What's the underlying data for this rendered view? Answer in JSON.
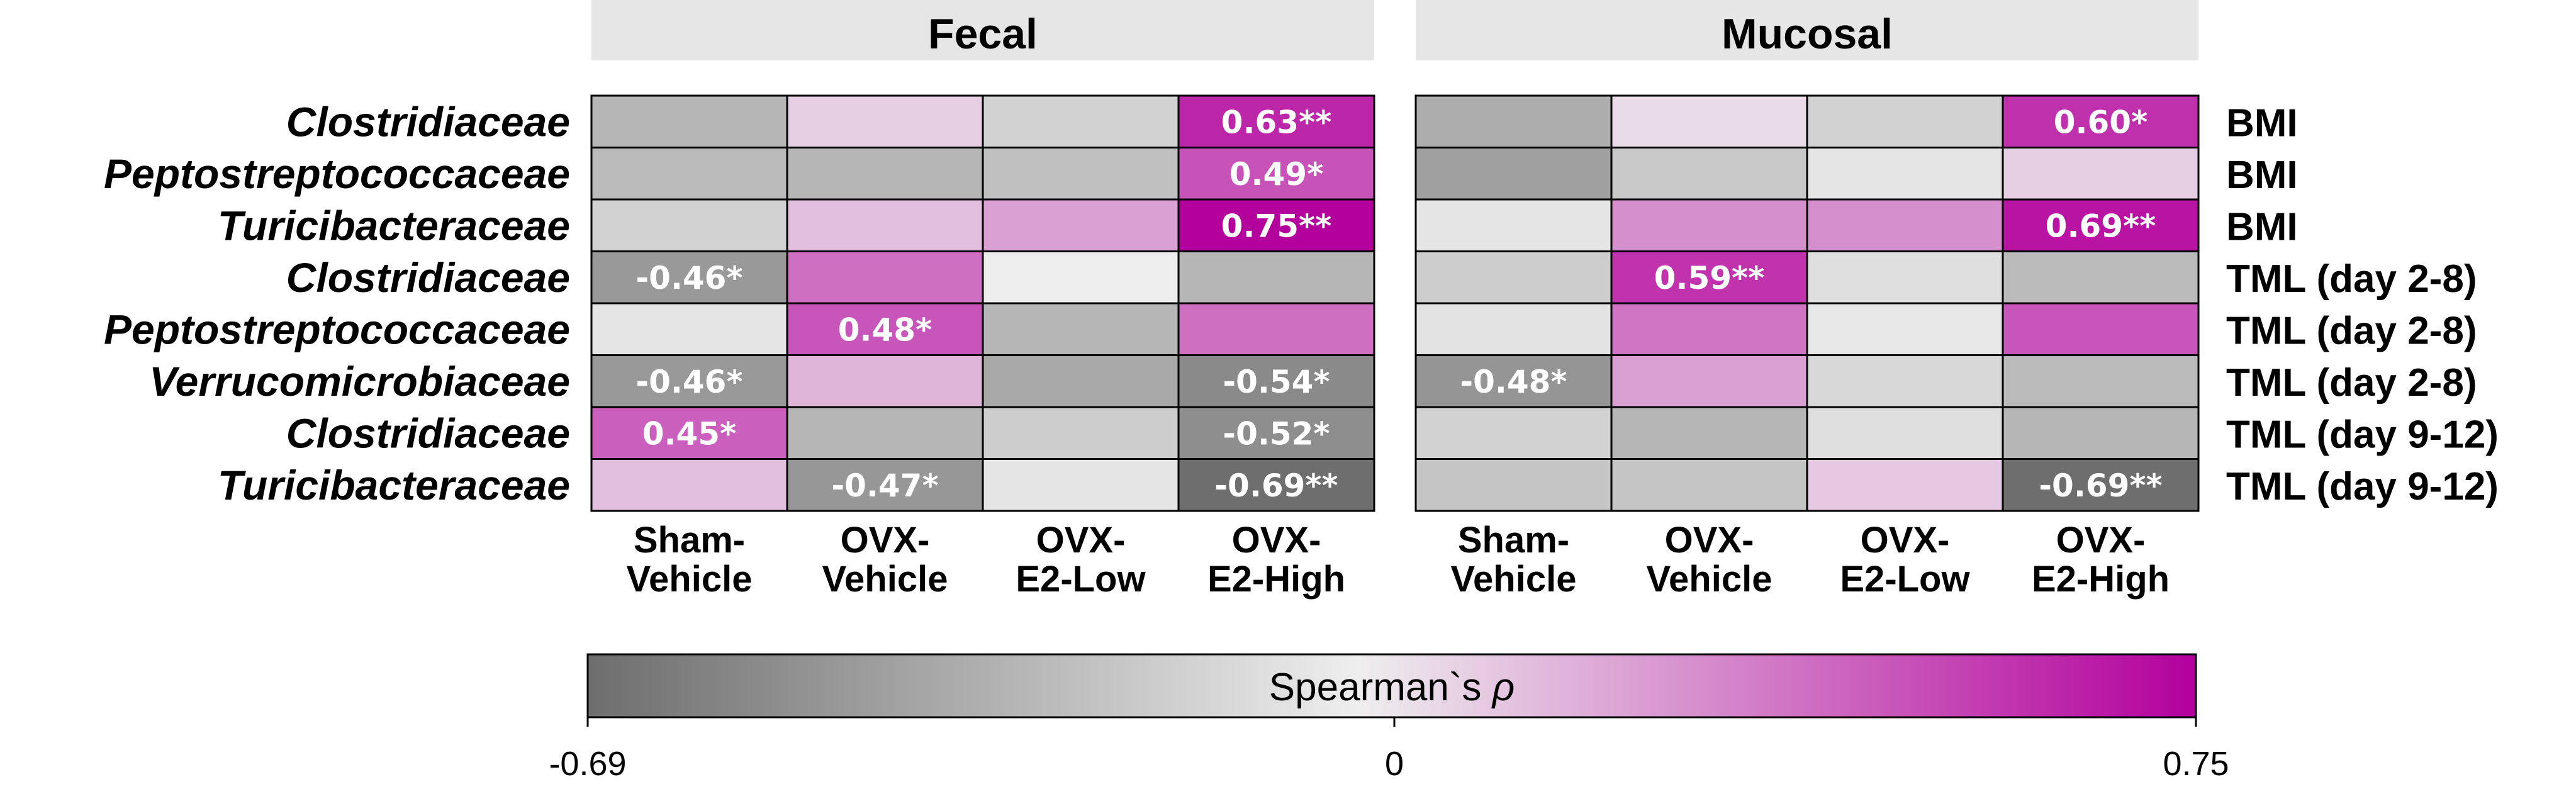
{
  "colors": {
    "negative_end": "#6e6e6e",
    "zero": "#eeeeee",
    "positive_end": "#b3009c",
    "cell_text": "#ffffff",
    "facet_background": "#e6e6e6"
  },
  "chart_data": {
    "type": "heatmap",
    "title": "",
    "facets": [
      "Fecal",
      "Mucosal"
    ],
    "columns": [
      [
        "Sham-",
        "Vehicle"
      ],
      [
        "OVX-",
        "Vehicle"
      ],
      [
        "OVX-",
        "E2-Low"
      ],
      [
        "OVX-",
        "E2-High"
      ]
    ],
    "rows": [
      {
        "taxon": "Clostridiaceae",
        "variable": "BMI"
      },
      {
        "taxon": "Peptostreptococcaceae",
        "variable": "BMI"
      },
      {
        "taxon": "Turicibacteraceae",
        "variable": "BMI"
      },
      {
        "taxon": "Clostridiaceae",
        "variable": "TML (day 2-8)"
      },
      {
        "taxon": "Peptostreptococcaceae",
        "variable": "TML (day 2-8)"
      },
      {
        "taxon": "Verrucomicrobiaceae",
        "variable": "TML (day 2-8)"
      },
      {
        "taxon": "Clostridiaceae",
        "variable": "TML (day 9-12)"
      },
      {
        "taxon": "Turicibacteraceae",
        "variable": "TML (day 9-12)"
      }
    ],
    "values": {
      "Fecal": [
        [
          -0.3,
          0.1,
          -0.15,
          0.63
        ],
        [
          -0.28,
          -0.3,
          -0.25,
          0.49
        ],
        [
          -0.15,
          0.15,
          0.25,
          0.75
        ],
        [
          -0.46,
          0.4,
          0.0,
          -0.3
        ],
        [
          -0.05,
          0.48,
          -0.3,
          0.4
        ],
        [
          -0.46,
          0.18,
          -0.38,
          -0.54
        ],
        [
          0.45,
          -0.3,
          -0.18,
          -0.52
        ],
        [
          0.15,
          -0.47,
          -0.05,
          -0.69
        ]
      ],
      "Mucosal": [
        [
          -0.35,
          0.06,
          -0.15,
          0.6
        ],
        [
          -0.42,
          -0.2,
          -0.05,
          0.1
        ],
        [
          -0.05,
          0.3,
          0.3,
          0.69
        ],
        [
          -0.18,
          0.59,
          -0.08,
          -0.28
        ],
        [
          -0.06,
          0.38,
          -0.04,
          0.48
        ],
        [
          -0.48,
          0.25,
          -0.12,
          -0.28
        ],
        [
          -0.15,
          -0.3,
          -0.08,
          -0.3
        ],
        [
          -0.22,
          -0.22,
          0.12,
          -0.69
        ]
      ]
    },
    "cell_labels": {
      "Fecal": [
        [
          "",
          "",
          "",
          "0.63**"
        ],
        [
          "",
          "",
          "",
          "0.49*"
        ],
        [
          "",
          "",
          "",
          "0.75**"
        ],
        [
          "-0.46*",
          "",
          "",
          ""
        ],
        [
          "",
          "0.48*",
          "",
          ""
        ],
        [
          "-0.46*",
          "",
          "",
          "-0.54*"
        ],
        [
          "0.45*",
          "",
          "",
          "-0.52*"
        ],
        [
          "",
          "-0.47*",
          "",
          "-0.69**"
        ]
      ],
      "Mucosal": [
        [
          "",
          "",
          "",
          "0.60*"
        ],
        [
          "",
          "",
          "",
          ""
        ],
        [
          "",
          "",
          "",
          "0.69**"
        ],
        [
          "",
          "0.59**",
          "",
          ""
        ],
        [
          "",
          "",
          "",
          ""
        ],
        [
          "-0.48*",
          "",
          "",
          ""
        ],
        [
          "",
          "",
          "",
          ""
        ],
        [
          "",
          "",
          "",
          "-0.69**"
        ]
      ]
    },
    "colorbar": {
      "title_text": "Spearman`s ",
      "title_symbol": "ρ",
      "min": -0.69,
      "max": 0.75,
      "ticks": [
        "-0.69",
        "0",
        "0.75"
      ]
    }
  }
}
